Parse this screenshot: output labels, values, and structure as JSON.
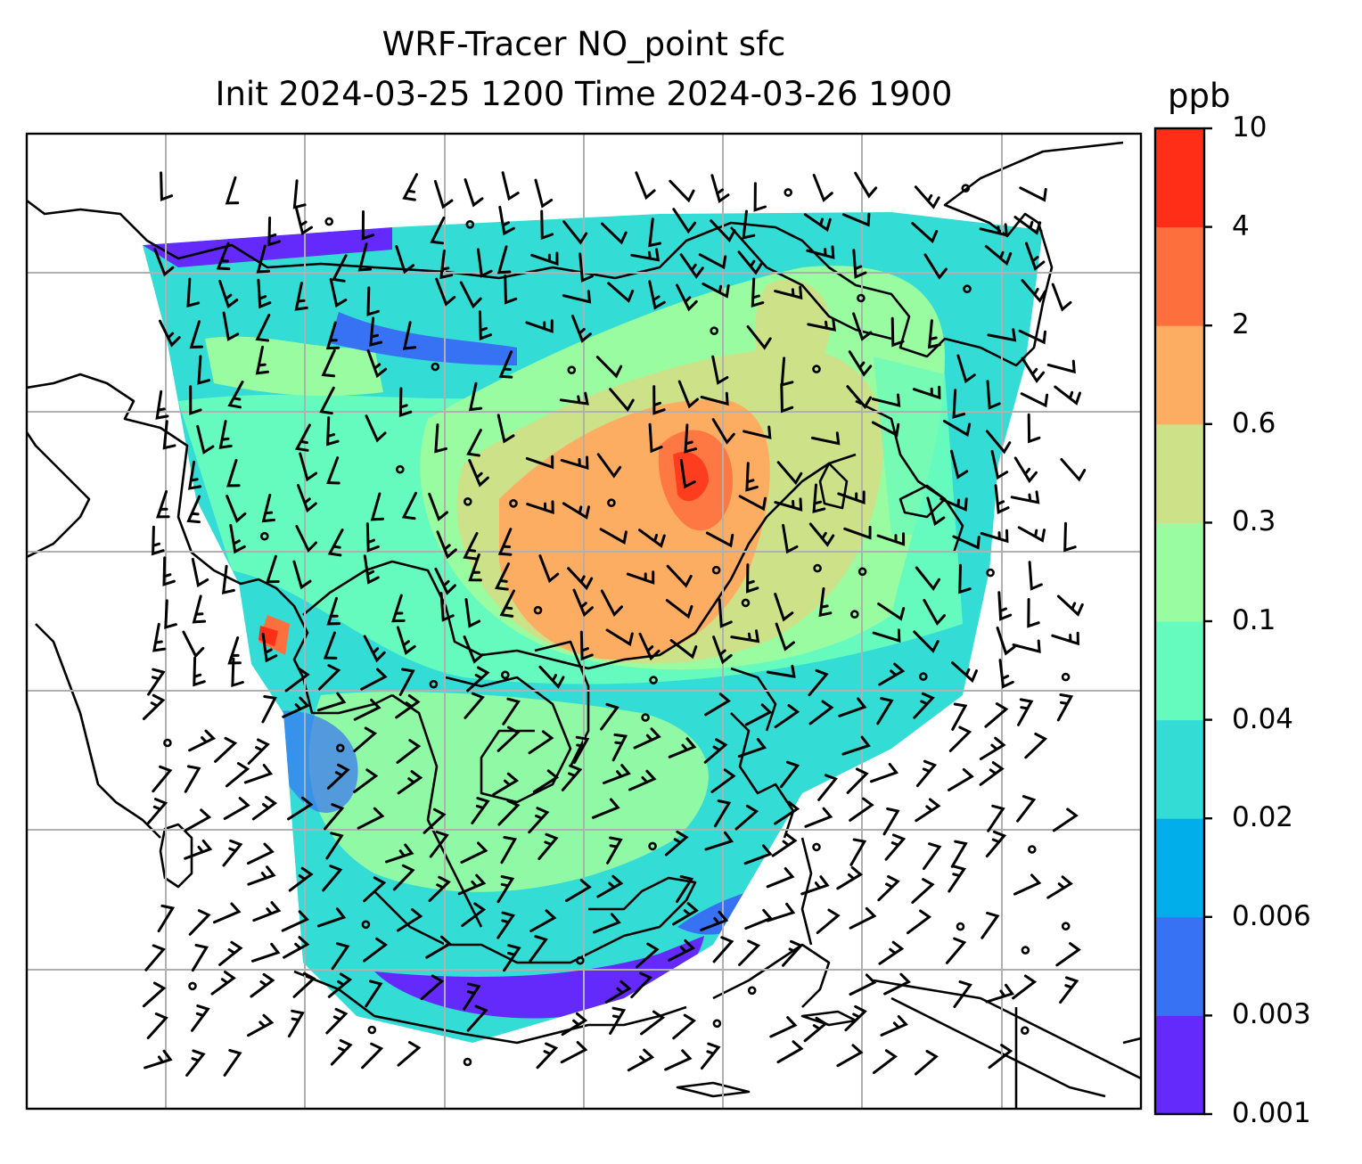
{
  "title_line1": "WRF-Tracer NO_point sfc",
  "title_line2": "Init 2024-03-25 1200 Time 2024-03-26 1900",
  "colorbar": {
    "unit": "ppb",
    "levels": [
      "0.001",
      "0.003",
      "0.006",
      "0.02",
      "0.04",
      "0.1",
      "0.3",
      "0.6",
      "2",
      "4",
      "10"
    ],
    "colors": [
      "#6429fb",
      "#3772f4",
      "#02aee9",
      "#33dcd4",
      "#66fbbe",
      "#9afca1",
      "#cde188",
      "#fdad61",
      "#fe6f3e",
      "#fe2e17"
    ]
  },
  "chart_data": {
    "type": "heatmap",
    "title": "WRF-Tracer NO_point sfc",
    "subtitle": "Init 2024-03-25 1200 Time 2024-03-26 1900",
    "colorbar_label": "ppb",
    "colorbar_ticks": [
      0.001,
      0.003,
      0.006,
      0.02,
      0.04,
      0.1,
      0.3,
      0.6,
      2,
      4,
      10
    ],
    "grid": true,
    "overlays": [
      "coastlines",
      "wind barbs",
      "calm-wind circles"
    ]
  }
}
